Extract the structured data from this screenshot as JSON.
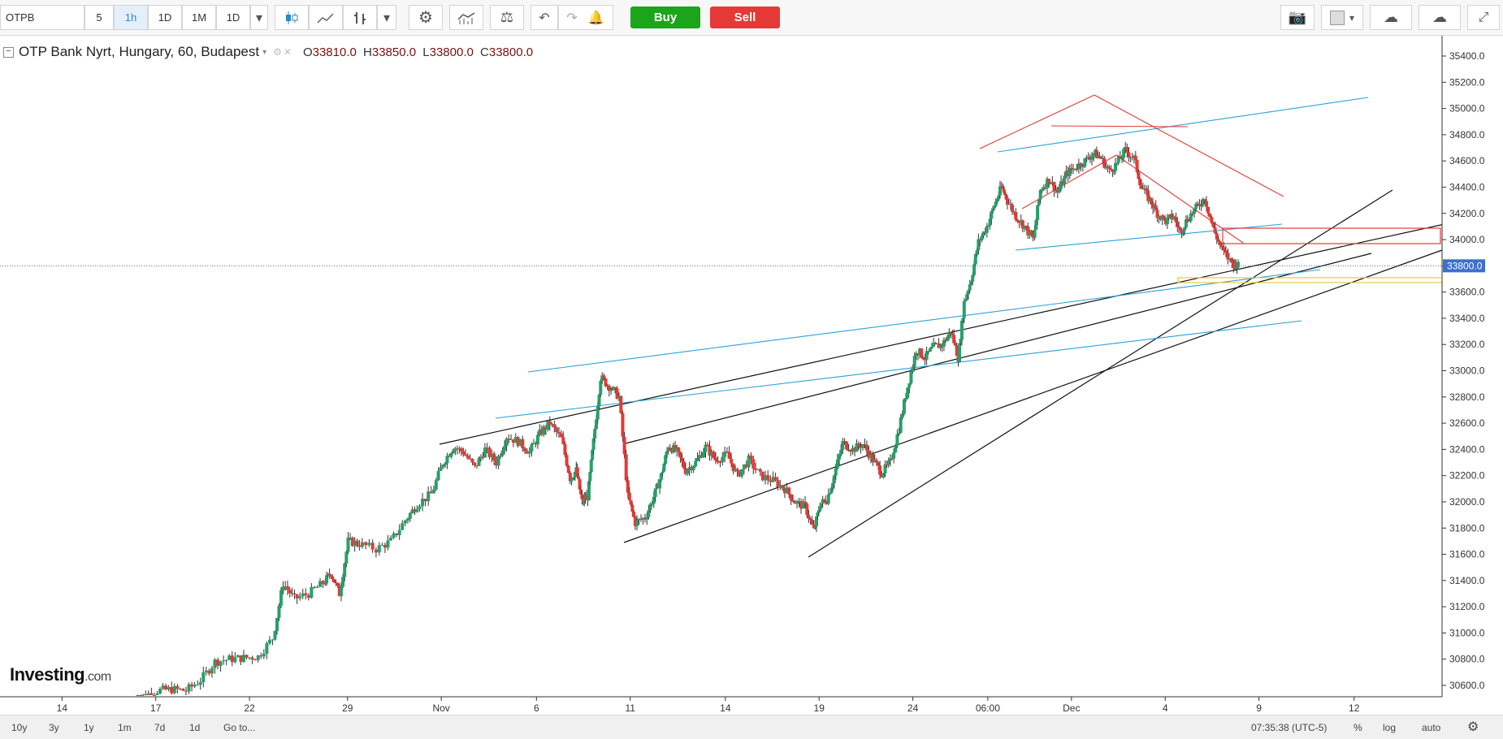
{
  "toolbar": {
    "symbol": "OTPB",
    "intervals": [
      "5",
      "1h",
      "1D",
      "1M",
      "1D"
    ],
    "buy_label": "Buy",
    "sell_label": "Sell"
  },
  "legend": {
    "title": "OTP Bank Nyrt, Hungary, 60, Budapest",
    "open_key": "O",
    "open": "33810.0",
    "high_key": "H",
    "high": "33850.0",
    "low_key": "L",
    "low": "33800.0",
    "close_key": "C",
    "close": "33800.0"
  },
  "logo": {
    "main": "Investing",
    "suffix": ".com"
  },
  "bottombar": {
    "ranges": [
      "10y",
      "3y",
      "1y",
      "1m",
      "7d",
      "1d"
    ],
    "goto": "Go to...",
    "time": "07:35:38 (UTC-5)",
    "percent": "%",
    "log": "log",
    "auto": "auto"
  },
  "colors": {
    "up": "#26a069",
    "down": "#e53935",
    "price_tag": "#3d6fd0"
  },
  "chart_data": {
    "type": "candlestick",
    "title": "OTP Bank Nyrt, Hungary, 60, Budapest",
    "y_axis": {
      "min": 30500,
      "max": 35500,
      "ticks": [
        "35400.0",
        "35200.0",
        "35000.0",
        "34800.0",
        "34600.0",
        "34400.0",
        "34200.0",
        "34000.0",
        "33800.0",
        "33600.0",
        "33400.0",
        "33200.0",
        "33000.0",
        "32800.0",
        "32600.0",
        "32400.0",
        "32200.0",
        "32000.0",
        "31800.0",
        "31600.0",
        "31400.0",
        "31200.0",
        "31000.0",
        "30800.0",
        "30600.0"
      ]
    },
    "x_axis": {
      "ticks": [
        {
          "label": "14",
          "pos": 0.043
        },
        {
          "label": "17",
          "pos": 0.108
        },
        {
          "label": "22",
          "pos": 0.173
        },
        {
          "label": "29",
          "pos": 0.241
        },
        {
          "label": "Nov",
          "pos": 0.306
        },
        {
          "label": "6",
          "pos": 0.372
        },
        {
          "label": "11",
          "pos": 0.437
        },
        {
          "label": "14",
          "pos": 0.503
        },
        {
          "label": "19",
          "pos": 0.568
        },
        {
          "label": "24",
          "pos": 0.633
        },
        {
          "label": "06:00",
          "pos": 0.685
        },
        {
          "label": "Dec",
          "pos": 0.743
        },
        {
          "label": "4",
          "pos": 0.808
        },
        {
          "label": "9",
          "pos": 0.873
        },
        {
          "label": "12",
          "pos": 0.939
        }
      ]
    },
    "last_price": "33800.0",
    "last_price_value": 33800,
    "path": [
      [
        0.095,
        30500
      ],
      [
        0.1,
        30520
      ],
      [
        0.11,
        30560
      ],
      [
        0.12,
        30570
      ],
      [
        0.13,
        30560
      ],
      [
        0.14,
        30640
      ],
      [
        0.15,
        30780
      ],
      [
        0.16,
        30800
      ],
      [
        0.17,
        30810
      ],
      [
        0.18,
        30820
      ],
      [
        0.19,
        30960
      ],
      [
        0.197,
        31380
      ],
      [
        0.205,
        31260
      ],
      [
        0.215,
        31300
      ],
      [
        0.225,
        31380
      ],
      [
        0.23,
        31460
      ],
      [
        0.236,
        31300
      ],
      [
        0.242,
        31700
      ],
      [
        0.25,
        31680
      ],
      [
        0.262,
        31640
      ],
      [
        0.272,
        31700
      ],
      [
        0.282,
        31860
      ],
      [
        0.29,
        31980
      ],
      [
        0.3,
        32060
      ],
      [
        0.308,
        32300
      ],
      [
        0.315,
        32420
      ],
      [
        0.322,
        32380
      ],
      [
        0.33,
        32260
      ],
      [
        0.337,
        32400
      ],
      [
        0.345,
        32300
      ],
      [
        0.352,
        32500
      ],
      [
        0.36,
        32460
      ],
      [
        0.368,
        32380
      ],
      [
        0.375,
        32520
      ],
      [
        0.382,
        32600
      ],
      [
        0.39,
        32480
      ],
      [
        0.396,
        32180
      ],
      [
        0.4,
        32240
      ],
      [
        0.404,
        32000
      ],
      [
        0.408,
        32040
      ],
      [
        0.412,
        32460
      ],
      [
        0.417,
        32950
      ],
      [
        0.423,
        32880
      ],
      [
        0.43,
        32800
      ],
      [
        0.436,
        32040
      ],
      [
        0.441,
        31840
      ],
      [
        0.448,
        31880
      ],
      [
        0.454,
        32040
      ],
      [
        0.459,
        32200
      ],
      [
        0.464,
        32430
      ],
      [
        0.47,
        32380
      ],
      [
        0.476,
        32240
      ],
      [
        0.483,
        32300
      ],
      [
        0.49,
        32420
      ],
      [
        0.497,
        32320
      ],
      [
        0.505,
        32360
      ],
      [
        0.512,
        32200
      ],
      [
        0.52,
        32320
      ],
      [
        0.528,
        32200
      ],
      [
        0.537,
        32160
      ],
      [
        0.545,
        32100
      ],
      [
        0.552,
        32000
      ],
      [
        0.559,
        31960
      ],
      [
        0.565,
        31780
      ],
      [
        0.569,
        31980
      ],
      [
        0.574,
        32020
      ],
      [
        0.579,
        32200
      ],
      [
        0.585,
        32450
      ],
      [
        0.592,
        32400
      ],
      [
        0.599,
        32440
      ],
      [
        0.606,
        32320
      ],
      [
        0.612,
        32220
      ],
      [
        0.618,
        32300
      ],
      [
        0.624,
        32560
      ],
      [
        0.63,
        32880
      ],
      [
        0.636,
        33160
      ],
      [
        0.642,
        33100
      ],
      [
        0.648,
        33180
      ],
      [
        0.654,
        33200
      ],
      [
        0.66,
        33300
      ],
      [
        0.665,
        33100
      ],
      [
        0.669,
        33520
      ],
      [
        0.674,
        33700
      ],
      [
        0.679,
        33980
      ],
      [
        0.685,
        34100
      ],
      [
        0.69,
        34260
      ],
      [
        0.695,
        34400
      ],
      [
        0.699,
        34300
      ],
      [
        0.705,
        34180
      ],
      [
        0.711,
        34100
      ],
      [
        0.717,
        34000
      ],
      [
        0.722,
        34380
      ],
      [
        0.728,
        34460
      ],
      [
        0.734,
        34360
      ],
      [
        0.74,
        34500
      ],
      [
        0.746,
        34550
      ],
      [
        0.753,
        34600
      ],
      [
        0.759,
        34660
      ],
      [
        0.764,
        34620
      ],
      [
        0.77,
        34520
      ],
      [
        0.775,
        34580
      ],
      [
        0.781,
        34680
      ],
      [
        0.787,
        34620
      ],
      [
        0.792,
        34400
      ],
      [
        0.798,
        34300
      ],
      [
        0.803,
        34200
      ],
      [
        0.809,
        34140
      ],
      [
        0.814,
        34180
      ],
      [
        0.819,
        34060
      ],
      [
        0.824,
        34160
      ],
      [
        0.83,
        34240
      ],
      [
        0.836,
        34320
      ],
      [
        0.842,
        34080
      ],
      [
        0.848,
        33920
      ],
      [
        0.855,
        33820
      ],
      [
        0.859,
        33800
      ]
    ]
  }
}
